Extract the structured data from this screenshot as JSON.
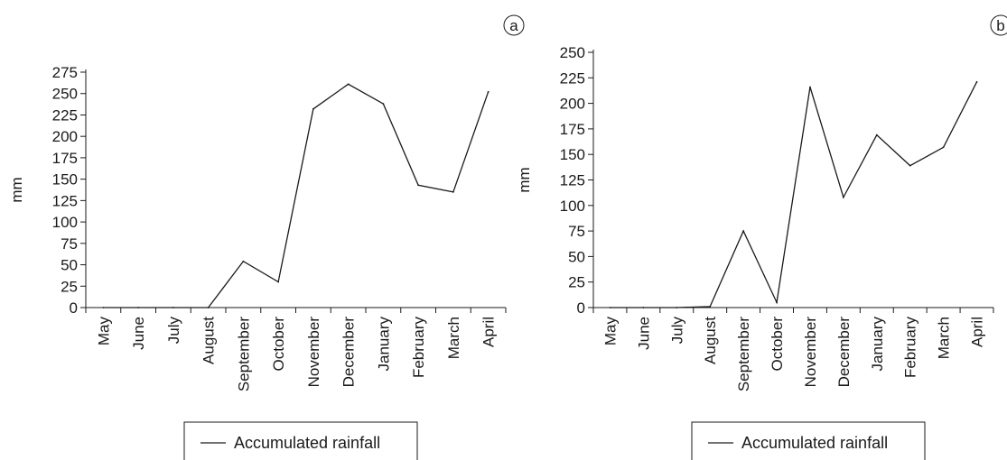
{
  "chart_data": [
    {
      "type": "line",
      "panel_label": "a",
      "ylabel": "mm",
      "ylim": [
        0,
        275
      ],
      "yticks": [
        0,
        25,
        50,
        75,
        100,
        125,
        150,
        175,
        200,
        225,
        250,
        275
      ],
      "grid": false,
      "legend_position": "bottom-center",
      "categories": [
        "May",
        "June",
        "July",
        "August",
        "September",
        "October",
        "November",
        "December",
        "January",
        "February",
        "March",
        "April"
      ],
      "series": [
        {
          "name": "Accumulated rainfall",
          "values": [
            0,
            0,
            0,
            0,
            54,
            30,
            232,
            261,
            238,
            143,
            135,
            252
          ]
        }
      ]
    },
    {
      "type": "line",
      "panel_label": "b",
      "ylabel": "mm",
      "ylim": [
        0,
        250
      ],
      "yticks": [
        0,
        25,
        50,
        75,
        100,
        125,
        150,
        175,
        200,
        225,
        250
      ],
      "grid": false,
      "legend_position": "bottom-center",
      "categories": [
        "May",
        "June",
        "July",
        "August",
        "September",
        "October",
        "November",
        "December",
        "January",
        "February",
        "March",
        "April"
      ],
      "series": [
        {
          "name": "Accumulated rainfall",
          "values": [
            0,
            0,
            0,
            1,
            75,
            5,
            216,
            108,
            169,
            139,
            157,
            221
          ]
        }
      ]
    }
  ]
}
